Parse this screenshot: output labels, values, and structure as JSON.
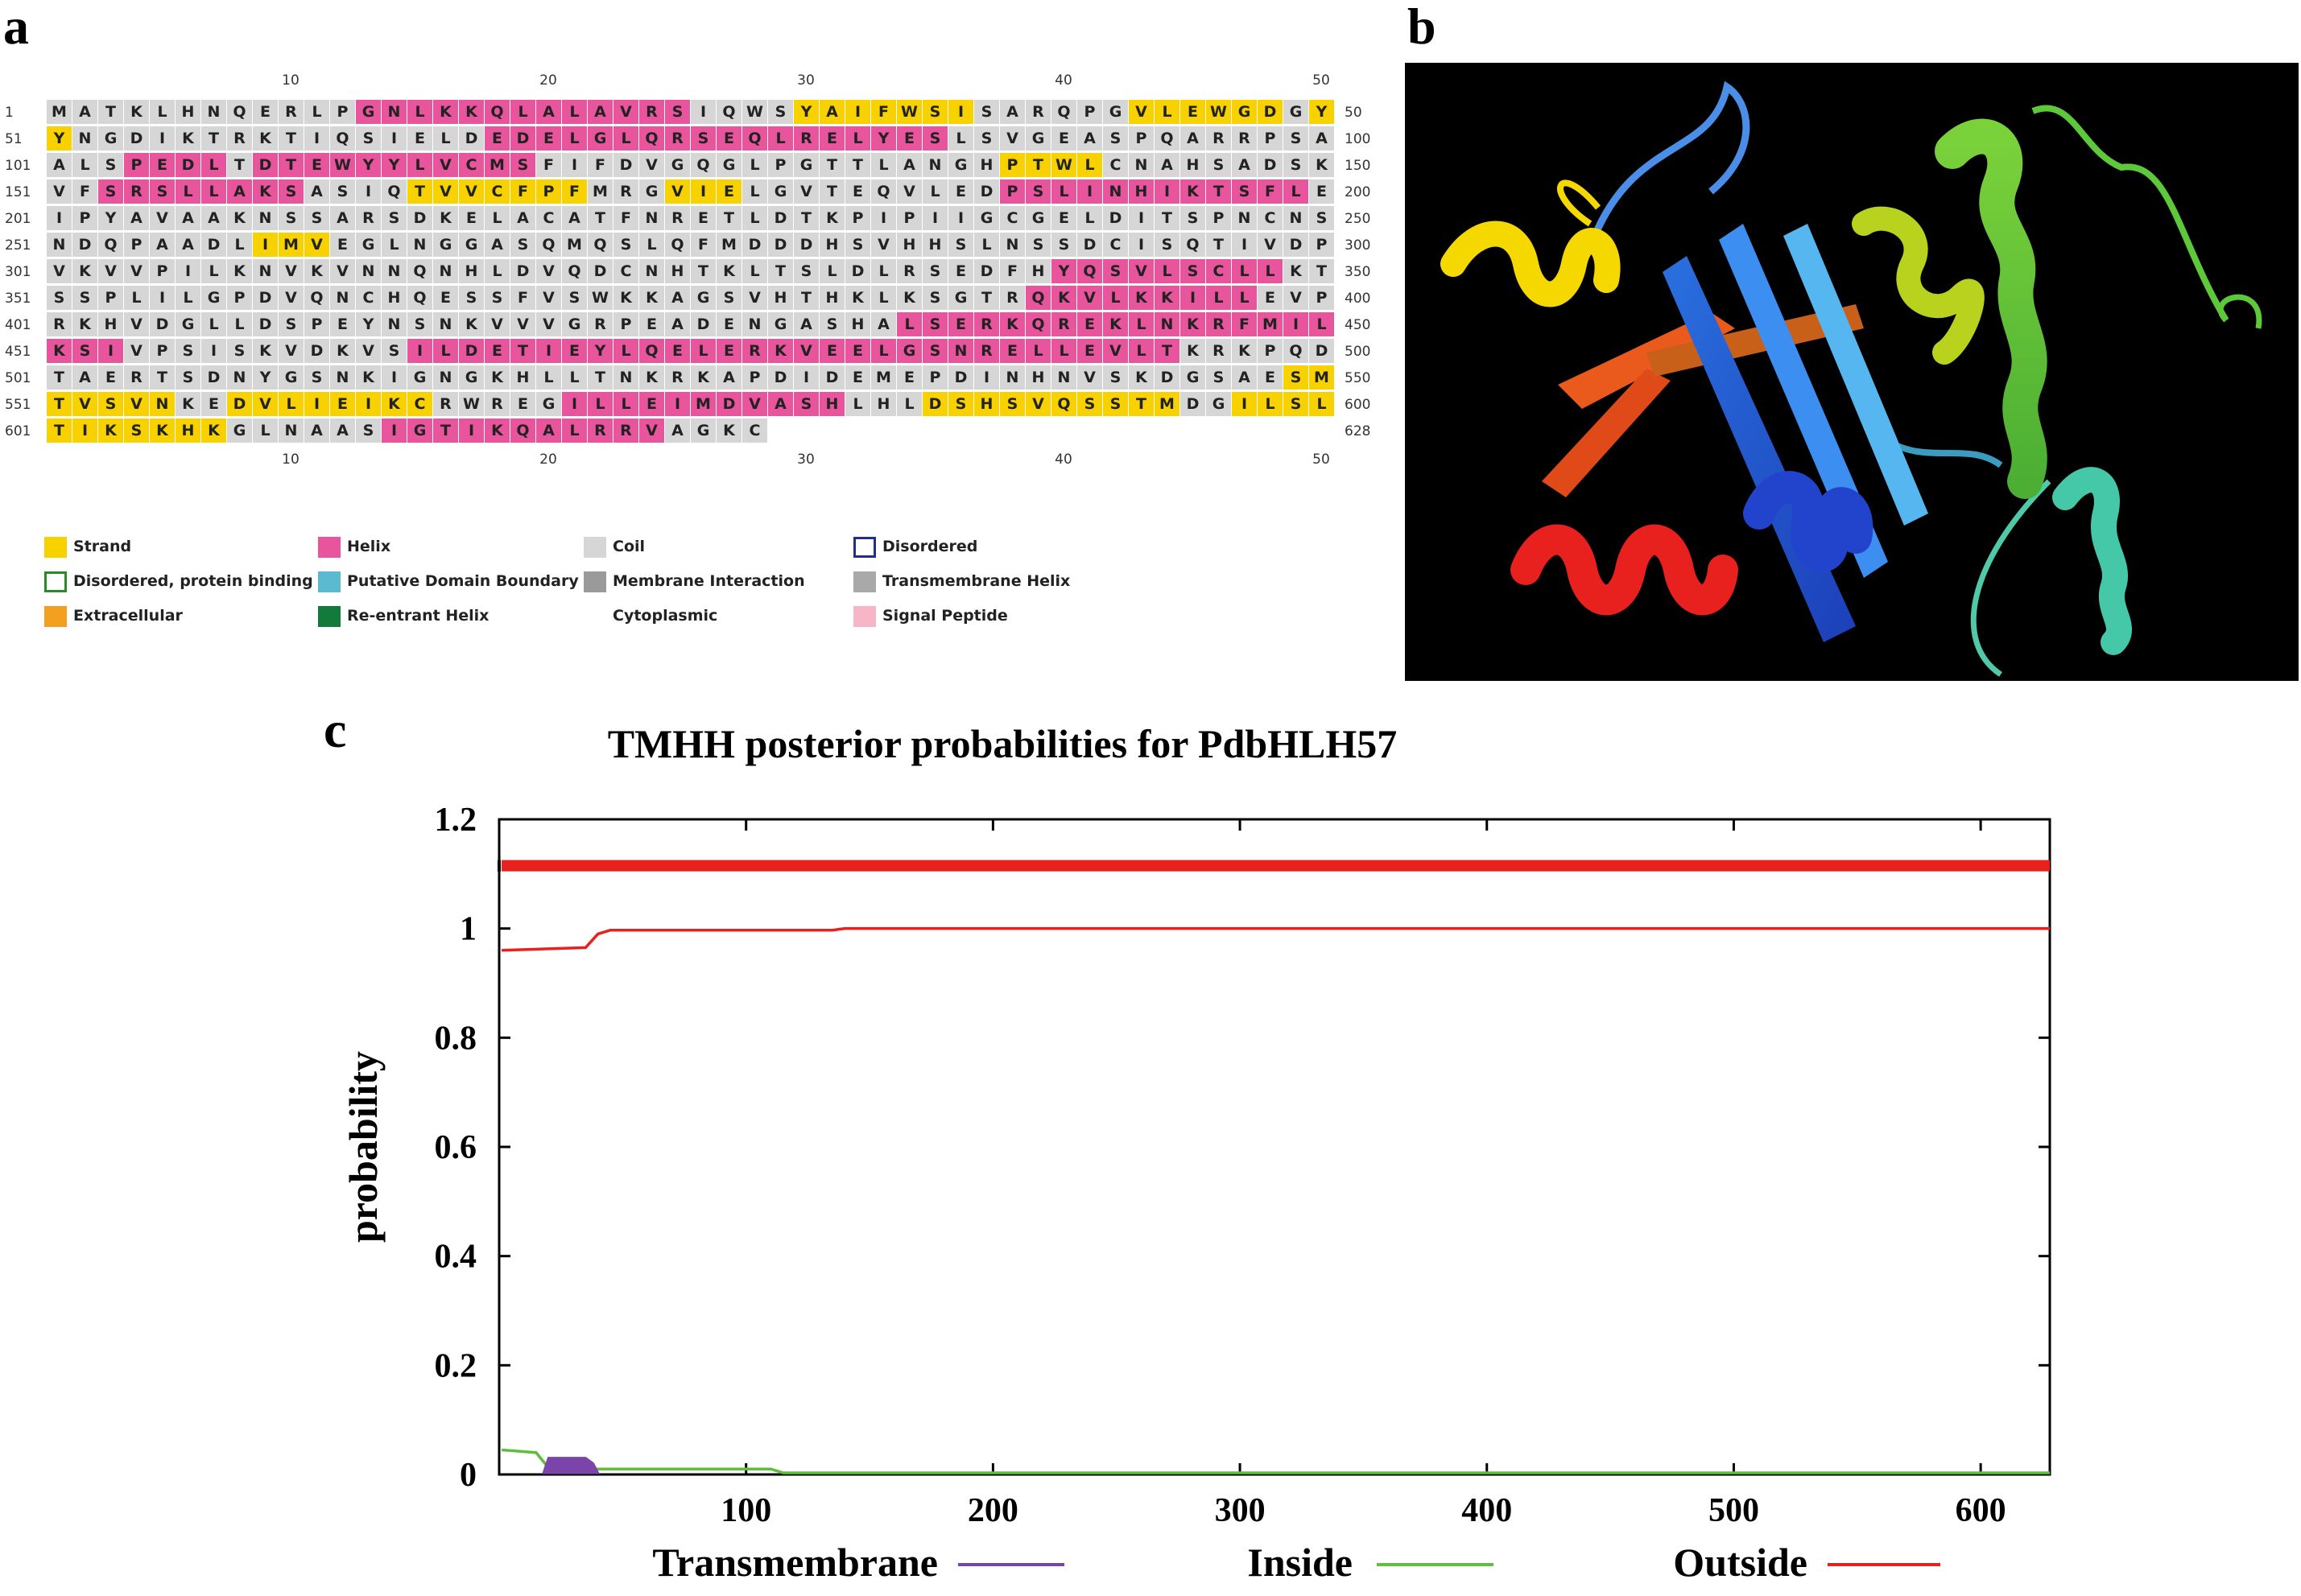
{
  "panel_labels": {
    "a": "a",
    "b": "b",
    "c": "c"
  },
  "sequence": {
    "ruler": [
      "10",
      "20",
      "30",
      "40",
      "50"
    ],
    "rows": [
      {
        "start": "1",
        "end": "50",
        "seq": "MATKLHNQERLPGNLKKQLALAVRSIQWSYAIFWSISARQPGVLEWGDGY",
        "ss": "CCCCCCCCCCCCHHHHHHHHHHHHHCCCCEEEEEEECCCCCCEEEEEECE"
      },
      {
        "start": "51",
        "end": "100",
        "seq": "YNGDIKTRKTIQSIELDEDELGLQRSEQLRELYESLSVGEASPQARRPSA",
        "ss": "ECCCCCCCCCCCCCCCCHHHHHHHHHHHHHHHHHHCCCCCCCCCCCCCCC"
      },
      {
        "start": "101",
        "end": "150",
        "seq": "ALSPEDLTDTEWYYLVCMSFIFDVGQGLPGTTLANGHPTWLCNAHSADSK",
        "ss": "CCCHHHHCHHHHHHHHHHHCCCCCCCCCCCCCCCCCCEEEECCCCCCCCC"
      },
      {
        "start": "151",
        "end": "200",
        "seq": "VFSRSLLAKSASIQTVVCFPFMRGVIELGVTEQVLEDPSLINHIKTSFLE",
        "ss": "CCHHHHHHHHCCCCEEEEEEECCCEEECCCCCCCCCCHHHHHHHHHHHHC"
      },
      {
        "start": "201",
        "end": "250",
        "seq": "IPYAVAAKNSSARSDKELACATFNRETLDTKPIPIIGCGELDITSPNCNS",
        "ss": "CCCCCCCCCCCCCCCCCCCCCCCCCCCCCCCCCCCCCCCCCCCCCCCCCC"
      },
      {
        "start": "251",
        "end": "300",
        "seq": "NDQPAADLIMVEGLNGGASQMQSLQFMDDDHSVHHSLNSSDCISQTIVDP",
        "ss": "CCCCCCCCEEECCCCCCCCCCCCCCCCCCCCCCCCCCCCCCCCCCCCCCC"
      },
      {
        "start": "301",
        "end": "350",
        "seq": "VKVVPILKNVKVNNQNHLDVQDCNHTKLTSLDLRSEDFHYQSVLSCLLKT",
        "ss": "CCCCCCCCCCCCCCCCCCCCCCCCCCCCCCCCCCCCCCCHHHHHHHHHCC"
      },
      {
        "start": "351",
        "end": "400",
        "seq": "SSPLILGPDVQNCHQESSFVSWKKAGSVHTHKLKSGTRQKVLKKILLEVP",
        "ss": "CCCCCCCCCCCCCCCCCCCCCCCCCCCCCCCCCCCCCCHHHHHHHHHCCC"
      },
      {
        "start": "401",
        "end": "450",
        "seq": "RKHVDGLLDSPEYNSNKVVVGRPEADENGASHALSERKQREKLNKRFMIL",
        "ss": "CCCCCCCCCCCCCCCCCCCCCCCCCCCCCCCCCHHHHHHHHHHHHHHHHH"
      },
      {
        "start": "451",
        "end": "500",
        "seq": "KSIVPSISKVDKVSILDETIEYLQELERKVEELGSNRELLEVLTKRKPQD",
        "ss": "HHHCCCCCCCCCCCHHHHHHHHHHHHHHHHHHHHHHHHHHHHHHCCCCCC"
      },
      {
        "start": "501",
        "end": "550",
        "seq": "TAERTSDNYGSNKIGNGKHLLTNKRKAPDIDEMEPDINHNVSKDGSAESM",
        "ss": "CCCCCCCCCCCCCCCCCCCCCCCCCCCCCCCCCCCCCCCCCCCCCCCCEE"
      },
      {
        "start": "551",
        "end": "600",
        "seq": "TVSVNKEDVLIEIKCRWREGILLEIMDVASHLHLDSHSVQSSTMDGILSL",
        "ss": "EEEEECCEEEEEEEECCCCCHHHHHHHHHHHCCCEEEEEEEEEECCEEEE"
      },
      {
        "start": "601",
        "end": "628",
        "seq": "TIKSKHKGLNAASIGTIKQALRRVAGKC",
        "ss": "EEEEEEECCCCCCHHHHHHHHHHHCCCC"
      }
    ]
  },
  "legend": [
    {
      "label": "Strand",
      "swatch": "#f7d200",
      "style": "fill"
    },
    {
      "label": "Helix",
      "swatch": "#e8559c",
      "style": "fill"
    },
    {
      "label": "Coil",
      "swatch": "#d6d6d6",
      "style": "fill"
    },
    {
      "label": "Disordered",
      "swatch": "#1f2f8a",
      "style": "outline"
    },
    {
      "label": "Disordered, protein binding",
      "swatch": "#2a8a2a",
      "style": "outline"
    },
    {
      "label": "Putative Domain Boundary",
      "swatch": "#5bbad0",
      "style": "fill"
    },
    {
      "label": "Membrane Interaction",
      "swatch": "#9a9a9a",
      "style": "fill"
    },
    {
      "label": "Transmembrane Helix",
      "swatch": "#a9a9a9",
      "style": "fill"
    },
    {
      "label": "Extracellular",
      "swatch": "#f2a020",
      "style": "fill"
    },
    {
      "label": "Re-entrant Helix",
      "swatch": "#127a3a",
      "style": "fill"
    },
    {
      "label": "Cytoplasmic",
      "swatch": "",
      "style": "none"
    },
    {
      "label": "Signal Peptide",
      "swatch": "#f7b6c8",
      "style": "fill"
    }
  ],
  "chart_data": {
    "type": "line",
    "title": "TMHH posterior probabilities for PdbHLH57",
    "xlabel": "",
    "ylabel": "probability",
    "xlim": [
      0,
      628
    ],
    "ylim": [
      0,
      1.2
    ],
    "xticks": [
      "100",
      "200",
      "300",
      "400",
      "500",
      "600"
    ],
    "yticks": [
      "0",
      "0.2",
      "0.4",
      "0.6",
      "0.8",
      "1",
      "1.2"
    ],
    "series": [
      {
        "name": "Outside",
        "color": "#e8201e",
        "x": [
          1,
          35,
          40,
          45,
          100,
          135,
          140,
          628
        ],
        "y": [
          0.96,
          0.965,
          0.99,
          0.997,
          0.997,
          0.997,
          1.0,
          1.0
        ]
      },
      {
        "name": "Inside",
        "color": "#5fbf3a",
        "x": [
          1,
          15,
          20,
          30,
          45,
          110,
          115,
          628
        ],
        "y": [
          0.045,
          0.04,
          0.012,
          0.01,
          0.01,
          0.01,
          0.003,
          0.003
        ]
      },
      {
        "name": "Transmembrane",
        "color": "#7b44a8",
        "x": [
          18,
          20,
          35,
          38,
          40
        ],
        "y": [
          0.003,
          0.03,
          0.03,
          0.02,
          0.003
        ]
      }
    ],
    "top_bar": {
      "name": "Outside",
      "color": "#e8201e",
      "x": [
        1,
        628
      ],
      "y": 1.115
    },
    "legend": [
      "Transmembrane",
      "Inside",
      "Outside"
    ]
  }
}
